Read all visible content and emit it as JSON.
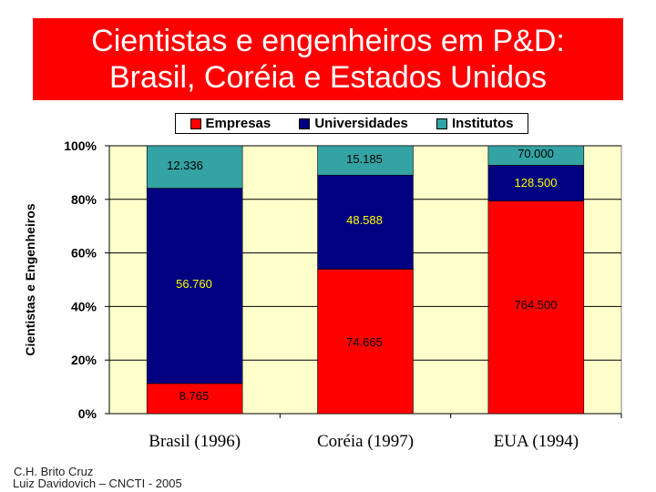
{
  "title": {
    "line1": "Cientistas e engenheiros em P&D:",
    "line2": "Brasil, Coréia e Estados Unidos"
  },
  "colors": {
    "title_bg": "#ff0000",
    "plot_bg": "#ffffcc",
    "empresas": "#ff0000",
    "universidades": "#000080",
    "institutos": "#33a3a3"
  },
  "legend": [
    "Empresas",
    "Universidades",
    "Institutos"
  ],
  "credits": {
    "line1": "C.H. Brito Cruz",
    "line2": "Luiz Davidovich – CNCTI - 2005"
  },
  "chart_data": {
    "type": "bar",
    "stacked": "percent",
    "ylabel": "Cientistas e Engenheiros",
    "yticks": [
      "0%",
      "20%",
      "40%",
      "60%",
      "80%",
      "100%"
    ],
    "ylim": [
      0,
      100
    ],
    "categories": [
      "Brasil (1996)",
      "Coréia (1997)",
      "EUA (1994)"
    ],
    "series": [
      {
        "name": "Empresas",
        "values": [
          8765,
          74665,
          764500
        ],
        "labels": [
          "8.765",
          "74.665",
          "764.500"
        ]
      },
      {
        "name": "Universidades",
        "values": [
          56760,
          48588,
          128500
        ],
        "labels": [
          "56.760",
          "48.588",
          "128.500"
        ]
      },
      {
        "name": "Institutos",
        "values": [
          12336,
          15185,
          70000
        ],
        "labels": [
          "12.336",
          "15.185",
          "70.000"
        ]
      }
    ],
    "legend_position": "top",
    "grid": "horizontal"
  }
}
